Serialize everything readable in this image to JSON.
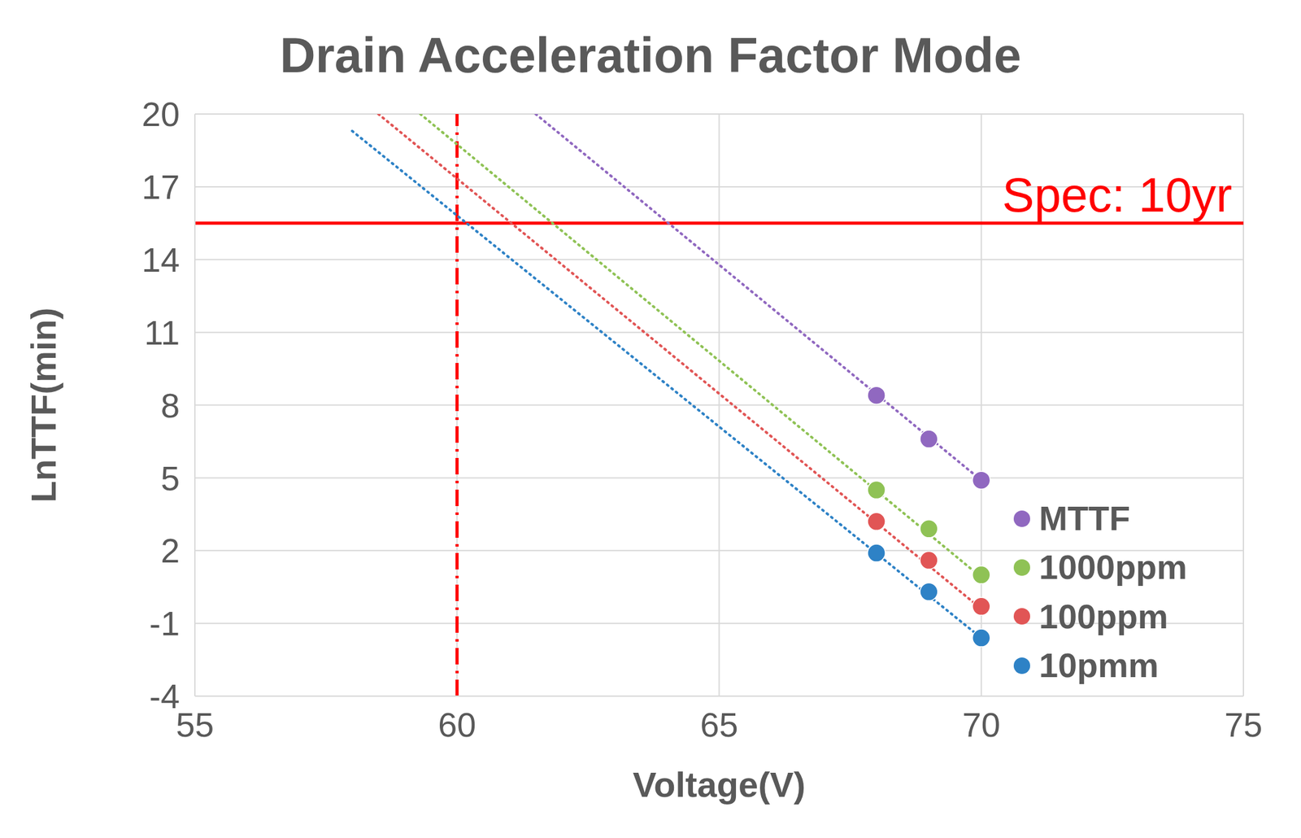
{
  "chart_data": {
    "type": "scatter",
    "title": "Drain Acceleration Factor Mode",
    "x_label": "Voltage(V)",
    "y_label": "LnTTF(min)",
    "xlim": [
      55,
      75
    ],
    "xticks": [
      55,
      60,
      65,
      70,
      75
    ],
    "ylim": [
      -4,
      20
    ],
    "yticks": [
      -4,
      -1,
      2,
      5,
      8,
      11,
      14,
      17,
      20
    ],
    "grid": true,
    "legend": "lower right",
    "marker": "circle",
    "x": [
      68,
      69,
      70
    ],
    "series": [
      {
        "name": "MTTF",
        "color": "#9068c0",
        "values": [
          8.4,
          6.6,
          4.9
        ],
        "trendline": {
          "x": [
            61.5,
            70
          ],
          "y": [
            20,
            4.9
          ],
          "line_style": "dotted"
        }
      },
      {
        "name": "1000ppm",
        "color": "#8fc255",
        "values": [
          4.5,
          2.9,
          1.0
        ],
        "trendline": {
          "x": [
            59.3,
            70
          ],
          "y": [
            20,
            0.9
          ],
          "line_style": "dotted"
        }
      },
      {
        "name": "100ppm",
        "color": "#e15555",
        "values": [
          3.2,
          1.6,
          -0.3
        ],
        "trendline": {
          "x": [
            58.5,
            70
          ],
          "y": [
            20,
            -0.4
          ],
          "line_style": "dotted"
        }
      },
      {
        "name": "10pmm",
        "color": "#2e82c6",
        "values": [
          1.9,
          0.3,
          -1.6
        ],
        "trendline": {
          "x": [
            58,
            70
          ],
          "y": [
            19.3,
            -1.6
          ],
          "line_style": "dotted"
        }
      }
    ],
    "annotations": [
      {
        "type": "hline",
        "y": 15.5,
        "label": "Spec: 10yr",
        "color": "#ff0000",
        "line_style": "solid"
      },
      {
        "type": "vline",
        "x": 60,
        "color": "#ff0000",
        "line_style": "dashdot"
      }
    ]
  }
}
